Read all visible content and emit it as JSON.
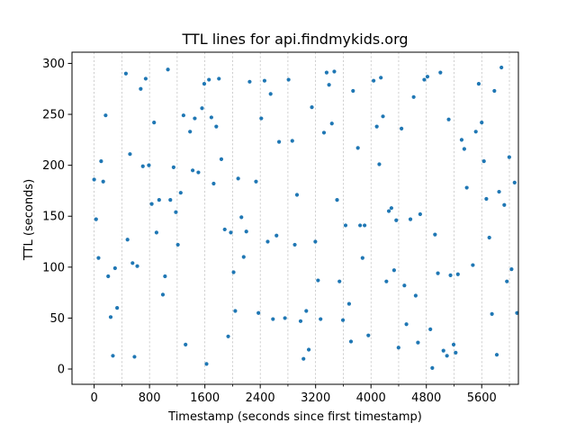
{
  "chart_data": {
    "type": "scatter",
    "title": "TTL lines for api.findmykids.org",
    "xlabel": "Timestamp (seconds since first timestamp)",
    "ylabel": "TTL (seconds)",
    "xlim": [
      -320,
      6130
    ],
    "ylim": [
      -15,
      311
    ],
    "x_ticks": [
      0,
      800,
      1600,
      2400,
      3200,
      4000,
      4800,
      5600
    ],
    "x_tick_labels": [
      "0",
      "800",
      "1600",
      "2400",
      "3200",
      "4000",
      "4800",
      "5600"
    ],
    "y_ticks": [
      0,
      50,
      100,
      150,
      200,
      250,
      300
    ],
    "y_tick_labels": [
      "0",
      "50",
      "100",
      "150",
      "200",
      "250",
      "300"
    ],
    "vertical_gridlines": [
      0,
      400,
      800,
      1200,
      1600,
      2000,
      2400,
      2800,
      3200,
      3600,
      4000,
      4400,
      4800,
      5200,
      5600,
      6000
    ],
    "marker_color": "#1f77b4",
    "points": [
      [
        0,
        186
      ],
      [
        28,
        147
      ],
      [
        63,
        109
      ],
      [
        101,
        204
      ],
      [
        131,
        184
      ],
      [
        166,
        249
      ],
      [
        203,
        91
      ],
      [
        239,
        51
      ],
      [
        271,
        13
      ],
      [
        302,
        99
      ],
      [
        332,
        60
      ],
      [
        459,
        290
      ],
      [
        482,
        127
      ],
      [
        518,
        211
      ],
      [
        555,
        104
      ],
      [
        583,
        12
      ],
      [
        623,
        101
      ],
      [
        673,
        275
      ],
      [
        704,
        199
      ],
      [
        745,
        285
      ],
      [
        791,
        200
      ],
      [
        832,
        162
      ],
      [
        866,
        242
      ],
      [
        901,
        134
      ],
      [
        939,
        166
      ],
      [
        993,
        73
      ],
      [
        1024,
        91
      ],
      [
        1066,
        294
      ],
      [
        1101,
        166
      ],
      [
        1148,
        198
      ],
      [
        1181,
        154
      ],
      [
        1210,
        122
      ],
      [
        1251,
        173
      ],
      [
        1291,
        249
      ],
      [
        1321,
        24
      ],
      [
        1386,
        233
      ],
      [
        1424,
        195
      ],
      [
        1454,
        246
      ],
      [
        1506,
        193
      ],
      [
        1559,
        256
      ],
      [
        1591,
        280
      ],
      [
        1624,
        5
      ],
      [
        1659,
        284
      ],
      [
        1694,
        247
      ],
      [
        1727,
        182
      ],
      [
        1765,
        238
      ],
      [
        1803,
        285
      ],
      [
        1838,
        206
      ],
      [
        1887,
        137
      ],
      [
        1937,
        32
      ],
      [
        1975,
        134
      ],
      [
        2015,
        95
      ],
      [
        2039,
        57
      ],
      [
        2081,
        187
      ],
      [
        2128,
        149
      ],
      [
        2161,
        110
      ],
      [
        2199,
        135
      ],
      [
        2247,
        282
      ],
      [
        2339,
        184
      ],
      [
        2374,
        55
      ],
      [
        2415,
        246
      ],
      [
        2462,
        283
      ],
      [
        2508,
        125
      ],
      [
        2550,
        270
      ],
      [
        2584,
        49
      ],
      [
        2635,
        131
      ],
      [
        2672,
        223
      ],
      [
        2757,
        50
      ],
      [
        2809,
        284
      ],
      [
        2863,
        224
      ],
      [
        2899,
        122
      ],
      [
        2931,
        171
      ],
      [
        2983,
        47
      ],
      [
        3025,
        10
      ],
      [
        3065,
        57
      ],
      [
        3101,
        19
      ],
      [
        3146,
        257
      ],
      [
        3196,
        125
      ],
      [
        3235,
        87
      ],
      [
        3272,
        49
      ],
      [
        3321,
        232
      ],
      [
        3359,
        291
      ],
      [
        3394,
        279
      ],
      [
        3435,
        241
      ],
      [
        3470,
        292
      ],
      [
        3510,
        166
      ],
      [
        3545,
        86
      ],
      [
        3595,
        48
      ],
      [
        3633,
        141
      ],
      [
        3684,
        64
      ],
      [
        3711,
        27
      ],
      [
        3741,
        273
      ],
      [
        3811,
        217
      ],
      [
        3843,
        141
      ],
      [
        3878,
        109
      ],
      [
        3908,
        141
      ],
      [
        3962,
        33
      ],
      [
        4038,
        283
      ],
      [
        4084,
        238
      ],
      [
        4120,
        201
      ],
      [
        4143,
        286
      ],
      [
        4173,
        248
      ],
      [
        4223,
        86
      ],
      [
        4258,
        155
      ],
      [
        4295,
        158
      ],
      [
        4334,
        97
      ],
      [
        4365,
        146
      ],
      [
        4398,
        21
      ],
      [
        4441,
        236
      ],
      [
        4483,
        82
      ],
      [
        4512,
        44
      ],
      [
        4570,
        147
      ],
      [
        4617,
        267
      ],
      [
        4646,
        72
      ],
      [
        4679,
        26
      ],
      [
        4711,
        152
      ],
      [
        4770,
        284
      ],
      [
        4816,
        287
      ],
      [
        4858,
        39
      ],
      [
        4886,
        1
      ],
      [
        4925,
        132
      ],
      [
        4967,
        94
      ],
      [
        5003,
        291
      ],
      [
        5047,
        18
      ],
      [
        5098,
        13
      ],
      [
        5123,
        245
      ],
      [
        5149,
        92
      ],
      [
        5194,
        24
      ],
      [
        5224,
        16
      ],
      [
        5256,
        93
      ],
      [
        5310,
        225
      ],
      [
        5348,
        216
      ],
      [
        5384,
        178
      ],
      [
        5472,
        102
      ],
      [
        5515,
        233
      ],
      [
        5557,
        280
      ],
      [
        5600,
        242
      ],
      [
        5632,
        204
      ],
      [
        5667,
        167
      ],
      [
        5710,
        129
      ],
      [
        5748,
        54
      ],
      [
        5783,
        273
      ],
      [
        5818,
        14
      ],
      [
        5851,
        174
      ],
      [
        5885,
        296
      ],
      [
        5926,
        161
      ],
      [
        5964,
        86
      ],
      [
        5998,
        208
      ],
      [
        6031,
        98
      ],
      [
        6075,
        183
      ],
      [
        6110,
        55
      ]
    ]
  }
}
